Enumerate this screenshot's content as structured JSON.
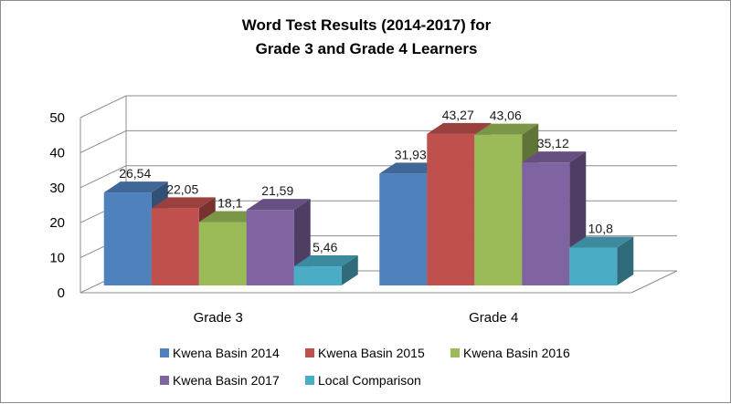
{
  "chart_data": {
    "type": "bar",
    "title": "Word Test Results (2014-2017) for",
    "subtitle": "Grade 3 and Grade 4 Learners",
    "categories": [
      "Grade 3",
      "Grade 4"
    ],
    "series": [
      {
        "name": "Kwena Basin 2014",
        "values": [
          26.54,
          31.93
        ],
        "labels": [
          "26,54",
          "31,93"
        ],
        "color": "#4f81bd"
      },
      {
        "name": "Kwena Basin 2015",
        "values": [
          22.05,
          43.27
        ],
        "labels": [
          "22,05",
          "43,27"
        ],
        "color": "#c0504d"
      },
      {
        "name": "Kwena Basin 2016",
        "values": [
          18.1,
          43.06
        ],
        "labels": [
          "18,1",
          "43,06"
        ],
        "color": "#9bbb59"
      },
      {
        "name": "Kwena Basin 2017",
        "values": [
          21.59,
          35.12
        ],
        "labels": [
          "21,59",
          "35,12"
        ],
        "color": "#8064a2"
      },
      {
        "name": "Local Comparison",
        "values": [
          5.46,
          10.8
        ],
        "labels": [
          "5,46",
          "10,8"
        ],
        "color": "#4bacc6"
      }
    ],
    "yticks": [
      "0",
      "10",
      "20",
      "30",
      "40",
      "50"
    ],
    "ylim": [
      0,
      50
    ],
    "grid": true,
    "legend": "bottom",
    "style": "3d-clustered-column"
  }
}
